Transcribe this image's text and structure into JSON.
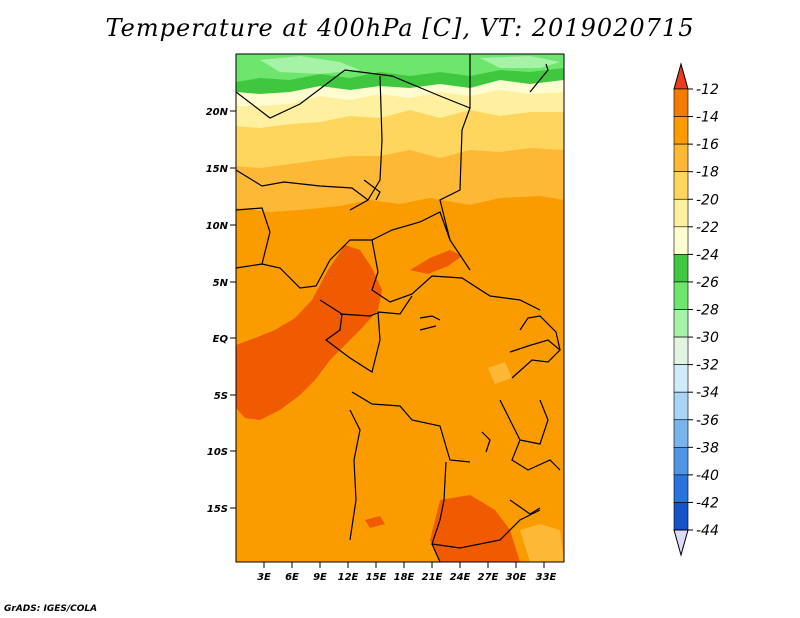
{
  "title": "Temperature at 400hPa [C], VT: 2019020715",
  "credit": "GrADS: IGES/COLA",
  "map": {
    "lat_ticks": [
      "20N",
      "15N",
      "10N",
      "5N",
      "EQ",
      "5S",
      "10S",
      "15S"
    ],
    "lon_ticks": [
      "3E",
      "6E",
      "9E",
      "12E",
      "15E",
      "18E",
      "21E",
      "24E",
      "27E",
      "30E",
      "33E"
    ]
  },
  "colorbar": {
    "labels": [
      "-12",
      "-14",
      "-16",
      "-18",
      "-20",
      "-22",
      "-24",
      "-26",
      "-28",
      "-30",
      "-32",
      "-34",
      "-36",
      "-38",
      "-40",
      "-42",
      "-44"
    ],
    "colors": [
      "#f05a00",
      "#f57a00",
      "#fa9b00",
      "#fdb836",
      "#fed65e",
      "#fff0a0",
      "#fffdd0",
      "#3fc83f",
      "#6ee66e",
      "#a6f2a6",
      "#e2f5e2",
      "#d0ecfa",
      "#a8d4f5",
      "#78b4ee",
      "#5096e6",
      "#2a72dc",
      "#1652c8",
      "#0d36a8",
      "#101c78"
    ],
    "top_cap": "#e83c1c",
    "bottom_cap": "#dcdcf8"
  }
}
